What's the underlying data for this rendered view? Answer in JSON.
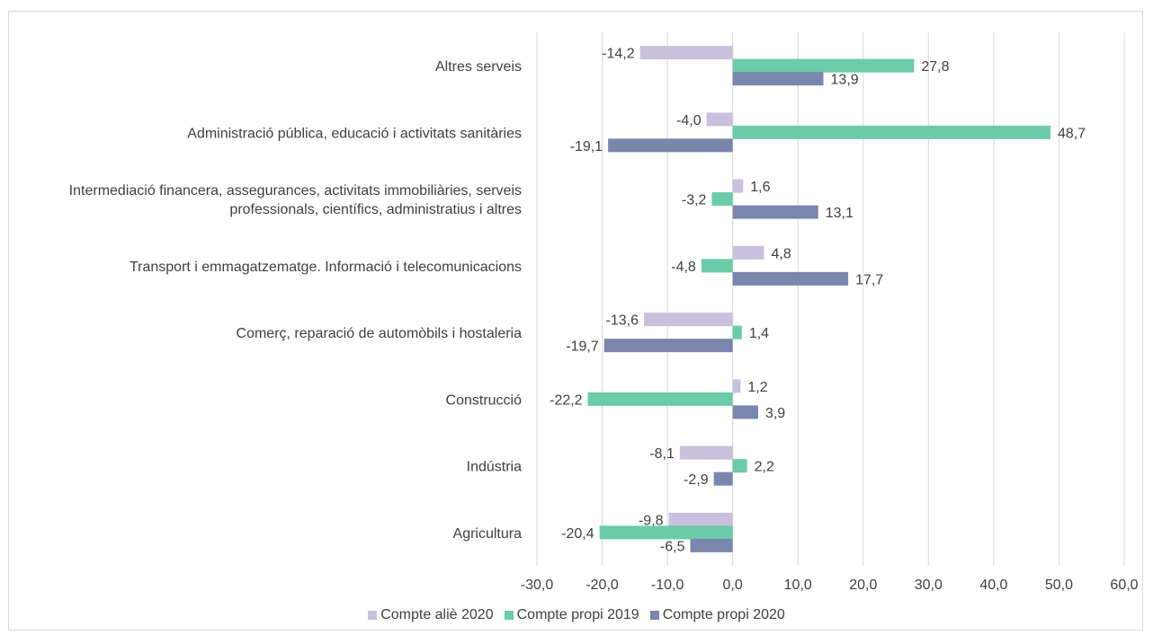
{
  "chart_data": {
    "type": "bar",
    "orientation": "horizontal",
    "categories": [
      "Altres serveis",
      "Administració pública, educació i activitats sanitàries",
      "Intermediació financera, assegurances, activitats immobiliàries, serveis professionals, científics, administratius i altres",
      "Transport i emmagatzematge. Informació i telecomunicacions",
      "Comerç, reparació de automòbils i hostaleria",
      "Construcció",
      "Indústria",
      "Agricultura"
    ],
    "category_lines": [
      [
        "Altres serveis"
      ],
      [
        "Administració pública, educació i activitats sanitàries"
      ],
      [
        "Intermediació financera, assegurances, activitats immobiliàries, serveis",
        "professionals, científics, administratius i altres"
      ],
      [
        "Transport i emmagatzematge. Informació i telecomunicacions"
      ],
      [
        "Comerç, reparació de automòbils i hostaleria"
      ],
      [
        "Construcció"
      ],
      [
        "Indústria"
      ],
      [
        "Agricultura"
      ]
    ],
    "series": [
      {
        "name": "Compte aliè 2020",
        "color": "#c9c0de",
        "values": [
          -14.2,
          -4.0,
          1.6,
          4.8,
          -13.6,
          1.2,
          -8.1,
          -9.8
        ],
        "labels": [
          "-14,2",
          "-4,0",
          "1,6",
          "4,8",
          "-13,6",
          "1,2",
          "-8,1",
          "-9,8"
        ]
      },
      {
        "name": "Compte propi 2019",
        "color": "#6acca8",
        "values": [
          27.8,
          48.7,
          -3.2,
          -4.8,
          1.4,
          -22.2,
          2.2,
          -20.4
        ],
        "labels": [
          "27,8",
          "48,7",
          "-3,2",
          "-4,8",
          "1,4",
          "-22,2",
          "2,2",
          "-20,4"
        ]
      },
      {
        "name": "Compte propi 2020",
        "color": "#7b86ad",
        "values": [
          13.9,
          -19.1,
          13.1,
          17.7,
          -19.7,
          3.9,
          -2.9,
          -6.5
        ],
        "labels": [
          "13,9",
          "-19,1",
          "13,1",
          "17,7",
          "-19,7",
          "3,9",
          "-2,9",
          "-6,5"
        ]
      }
    ],
    "xlim": [
      -30,
      60
    ],
    "x_ticks": [
      -30,
      -20,
      -10,
      0,
      10,
      20,
      30,
      40,
      50,
      60
    ],
    "x_tick_labels": [
      "-30,0",
      "-20,0",
      "-10,0",
      "0,0",
      "10,0",
      "20,0",
      "30,0",
      "40,0",
      "50,0",
      "60,0"
    ],
    "grid": "vertical",
    "legend_position": "bottom",
    "title": "",
    "xlabel": "",
    "ylabel": ""
  }
}
